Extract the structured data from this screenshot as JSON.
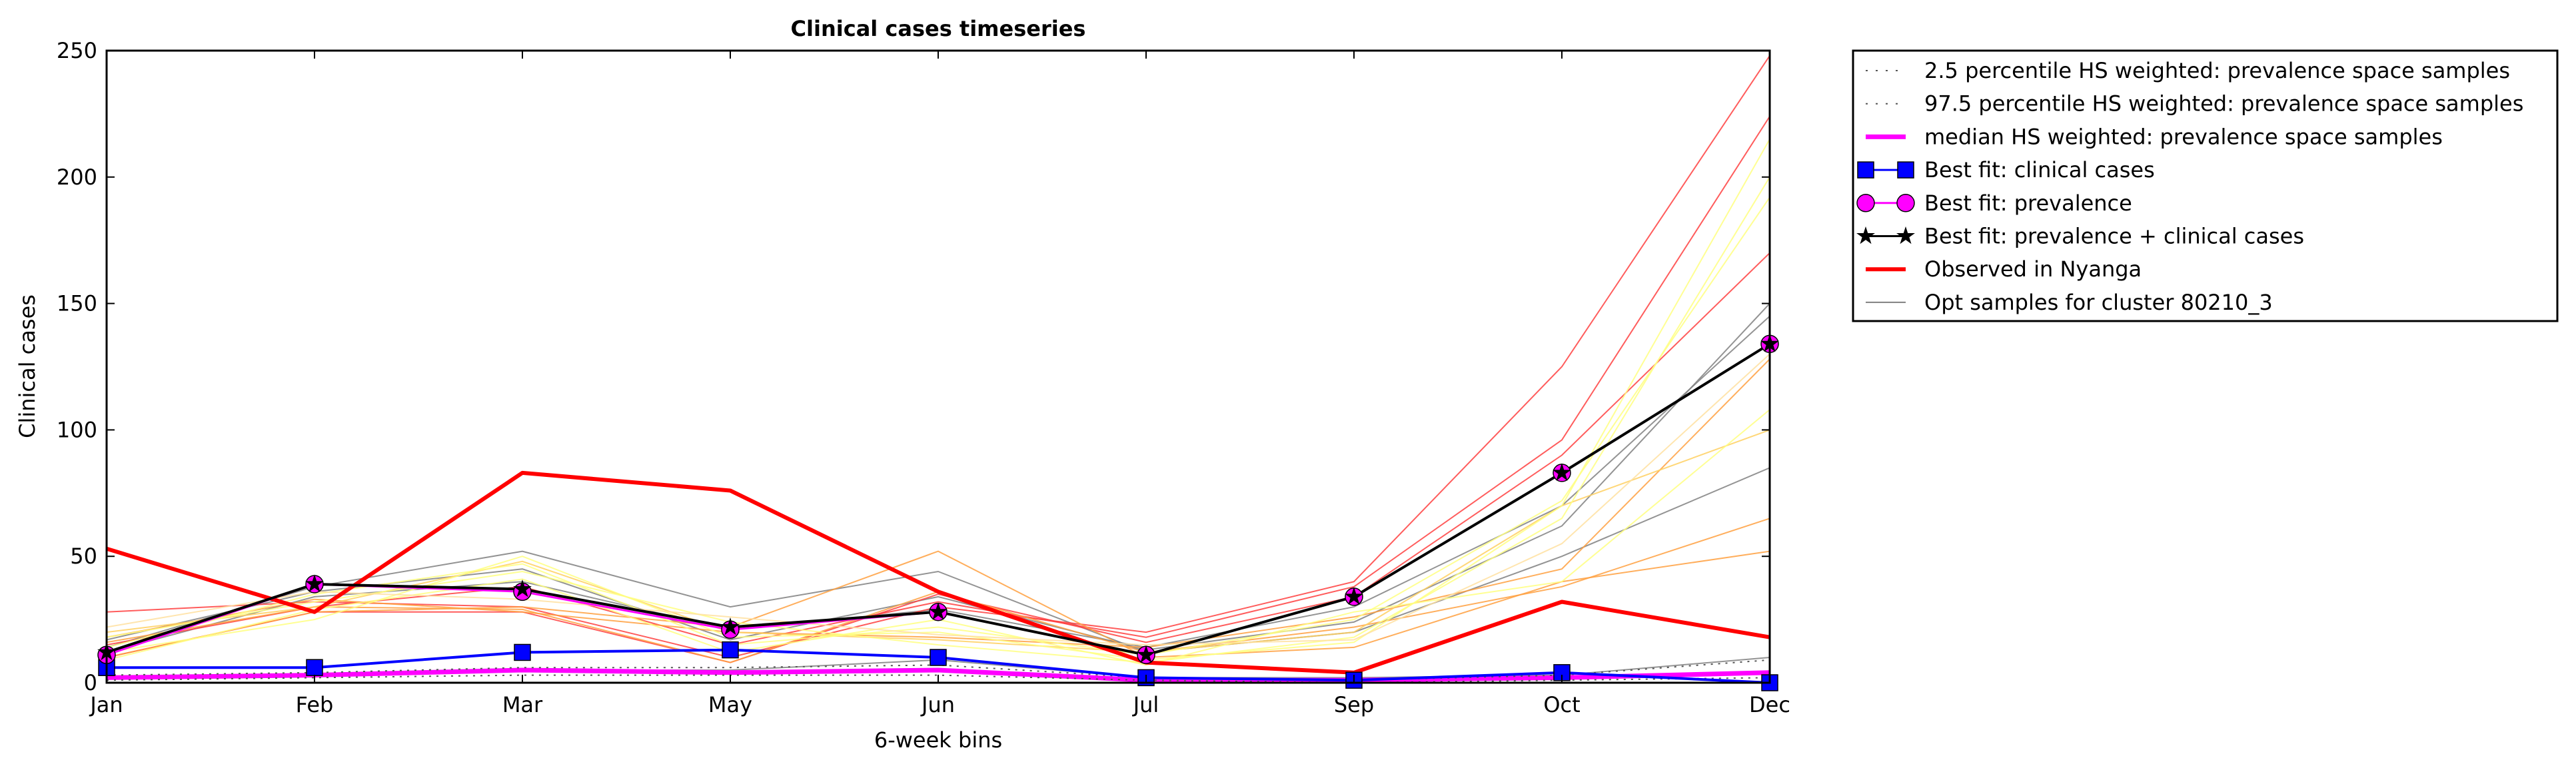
{
  "chart_data": {
    "type": "line",
    "title": "Clinical cases timeseries",
    "xlabel": "6-week bins",
    "ylabel": "Clinical cases",
    "categories": [
      "Jan",
      "Feb",
      "Mar",
      "May",
      "Jun",
      "Jul",
      "Sep",
      "Oct",
      "Dec"
    ],
    "ylim": [
      0,
      250
    ],
    "yticks": [
      0,
      50,
      100,
      150,
      200,
      250
    ],
    "grid": false,
    "legend_position": "outside-right",
    "legend": [
      {
        "label": "2.5 percentile HS weighted: prevalence space samples",
        "style": "dotted",
        "color": "#555555",
        "marker": "none"
      },
      {
        "label": "97.5 percentile HS weighted: prevalence space samples",
        "style": "dotted",
        "color": "#555555",
        "marker": "none"
      },
      {
        "label": "median HS weighted: prevalence space samples",
        "style": "solid",
        "color": "#ff00ff",
        "marker": "none"
      },
      {
        "label": "Best fit: clinical cases",
        "style": "solid",
        "color": "#0000ff",
        "marker": "square"
      },
      {
        "label": "Best fit: prevalence",
        "style": "solid",
        "color": "#ff00ff",
        "marker": "circle"
      },
      {
        "label": "Best fit: prevalence + clinical cases",
        "style": "solid",
        "color": "#000000",
        "marker": "star"
      },
      {
        "label": "Observed in Nyanga",
        "style": "solid",
        "color": "#ff0000",
        "marker": "none"
      },
      {
        "label": "Opt samples for cluster 80210_3",
        "style": "solid",
        "color": "#808080",
        "marker": "none"
      }
    ],
    "series": [
      {
        "name": "Observed in Nyanga",
        "color": "#ff0000",
        "width": 6,
        "values": [
          53,
          28,
          83,
          76,
          36,
          8,
          4,
          32,
          18
        ]
      },
      {
        "name": "Best fit: clinical cases",
        "color": "#0000ff",
        "width": 4,
        "marker": "square",
        "markerFill": "#0000ff",
        "values": [
          6,
          6,
          12,
          13,
          10,
          2,
          1,
          4,
          0
        ]
      },
      {
        "name": "Best fit: prevalence",
        "color": "#ff00ff",
        "width": 3,
        "marker": "circle",
        "markerFill": "#ff00ff",
        "values": [
          11,
          39,
          36,
          21,
          28,
          11,
          34,
          83,
          134
        ]
      },
      {
        "name": "Best fit: prevalence + clinical cases",
        "color": "#000000",
        "width": 4,
        "marker": "star",
        "markerFill": "#000000",
        "values": [
          12,
          39,
          37,
          22,
          28,
          11,
          34,
          83,
          134
        ]
      },
      {
        "name": "median HS weighted: prevalence space samples",
        "color": "#ff00ff",
        "width": 7,
        "values": [
          2,
          3,
          5,
          4,
          5,
          1,
          1,
          2,
          4
        ]
      },
      {
        "name": "2.5 percentile HS weighted: prevalence space samples",
        "color": "#555555",
        "width": 2,
        "dash": "3,8",
        "values": [
          1,
          2,
          3,
          3,
          3,
          1,
          0,
          1,
          2
        ]
      },
      {
        "name": "97.5 percentile HS weighted: prevalence space samples",
        "color": "#555555",
        "width": 2,
        "dash": "3,8",
        "values": [
          3,
          4,
          6,
          6,
          7,
          2,
          1,
          3,
          9
        ]
      }
    ],
    "samples": [
      {
        "color": "#808080",
        "values": [
          14,
          38,
          52,
          30,
          44,
          12,
          20,
          50,
          85
        ]
      },
      {
        "color": "#808080",
        "values": [
          17,
          36,
          45,
          17,
          34,
          13,
          24,
          62,
          150
        ]
      },
      {
        "color": "#808080",
        "values": [
          12,
          34,
          40,
          21,
          29,
          14,
          30,
          70,
          145
        ]
      },
      {
        "color": "#808080",
        "values": [
          2,
          3,
          5,
          5,
          9,
          2,
          2,
          3,
          10
        ]
      },
      {
        "color": "#ff4040",
        "values": [
          28,
          32,
          30,
          10,
          30,
          20,
          40,
          125,
          248
        ]
      },
      {
        "color": "#ff4040",
        "values": [
          15,
          30,
          38,
          15,
          32,
          18,
          38,
          96,
          224
        ]
      },
      {
        "color": "#ff4040",
        "values": [
          10,
          28,
          28,
          8,
          35,
          16,
          34,
          90,
          170
        ]
      },
      {
        "color": "#ffa040",
        "values": [
          16,
          30,
          29,
          8,
          36,
          12,
          22,
          38,
          65
        ]
      },
      {
        "color": "#ffa040",
        "values": [
          10,
          28,
          30,
          22,
          52,
          10,
          14,
          40,
          52
        ]
      },
      {
        "color": "#ffa040",
        "values": [
          18,
          33,
          28,
          20,
          18,
          14,
          26,
          45,
          128
        ]
      },
      {
        "color": "#ffd060",
        "values": [
          20,
          30,
          48,
          20,
          17,
          12,
          20,
          70,
          100
        ]
      },
      {
        "color": "#ffff80",
        "values": [
          12,
          25,
          50,
          18,
          20,
          9,
          16,
          70,
          215
        ]
      },
      {
        "color": "#ffff80",
        "values": [
          18,
          32,
          44,
          24,
          15,
          8,
          18,
          65,
          200
        ]
      },
      {
        "color": "#ffff80",
        "values": [
          14,
          35,
          47,
          15,
          22,
          11,
          25,
          72,
          192
        ]
      },
      {
        "color": "#ffff80",
        "values": [
          9,
          29,
          41,
          12,
          25,
          7,
          28,
          40,
          108
        ]
      },
      {
        "color": "#ffe0a0",
        "values": [
          22,
          36,
          33,
          26,
          19,
          15,
          17,
          55,
          130
        ]
      }
    ]
  }
}
